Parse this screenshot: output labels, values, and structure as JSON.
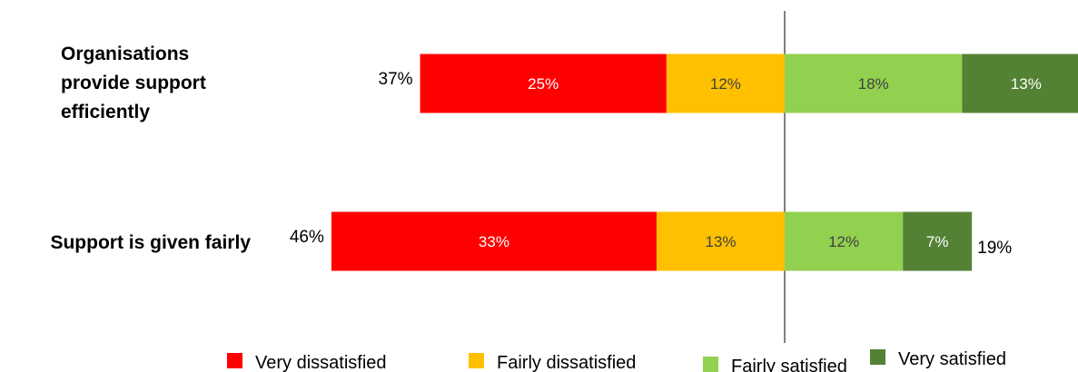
{
  "chart_data": {
    "type": "bar",
    "orientation": "horizontal",
    "stacking": "diverging",
    "categories": [
      [
        "Organisations",
        "provide support",
        "efficiently"
      ],
      [
        "Support is given fairly"
      ]
    ],
    "series": [
      {
        "name": "Very dissatisfied",
        "side": "negative",
        "color": "#ff0000",
        "label_color": "#ffffff",
        "values": [
          25,
          33
        ]
      },
      {
        "name": "Fairly dissatisfied",
        "side": "negative",
        "color": "#ffc000",
        "label_color": "#404040",
        "values": [
          12,
          13
        ]
      },
      {
        "name": "Fairly satisfied",
        "side": "positive",
        "color": "#92d050",
        "label_color": "#404040",
        "values": [
          18,
          12
        ]
      },
      {
        "name": "Very satisfied",
        "side": "positive",
        "color": "#548235",
        "label_color": "#ffffff",
        "values": [
          13,
          7
        ]
      }
    ],
    "data_labels": [
      [
        "25%",
        "12%",
        "18%",
        "13%"
      ],
      [
        "33%",
        "13%",
        "12%",
        "7%"
      ]
    ],
    "negative_totals": [
      "37%",
      "46%"
    ],
    "positive_totals": [
      "",
      "19%"
    ],
    "center_line": true,
    "grid": false,
    "legend_position": "bottom"
  }
}
